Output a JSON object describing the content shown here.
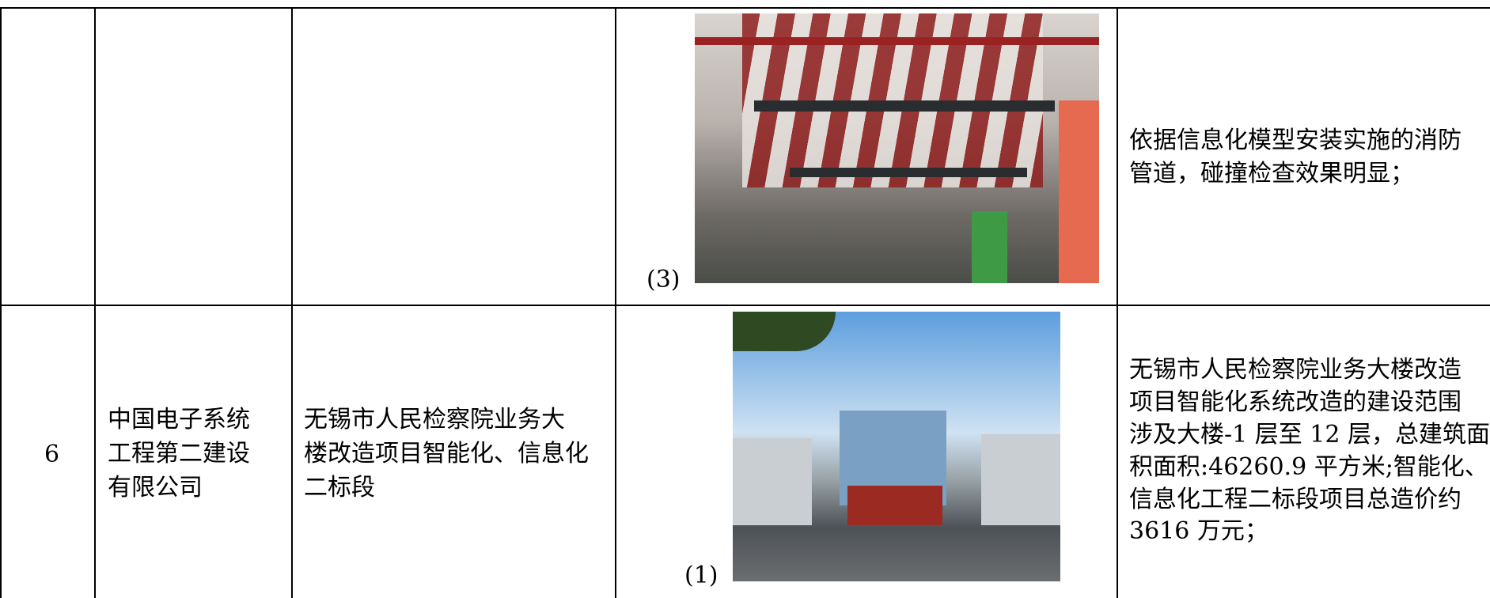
{
  "rows": [
    {
      "image_label": "(3)",
      "description": [
        "依据信息化模型安装实施的消防",
        "管道，碰撞检查效果明显；"
      ]
    },
    {
      "number": "6",
      "company": [
        "中国电子系统",
        "工程第二建设",
        "有限公司"
      ],
      "project": [
        "无锡市人民检察院业务大",
        "楼改造项目智能化、信息化",
        "二标段"
      ],
      "image_label": "(1)",
      "description": [
        "无锡市人民检察院业务大楼改造",
        "项目智能化系统改造的建设范围",
        "涉及大楼-1 层至 12 层，总建筑面",
        "积面积:46260.9 平方米;智能化、",
        "信息化工程二标段项目总造价约",
        "3616 万元；"
      ]
    }
  ]
}
